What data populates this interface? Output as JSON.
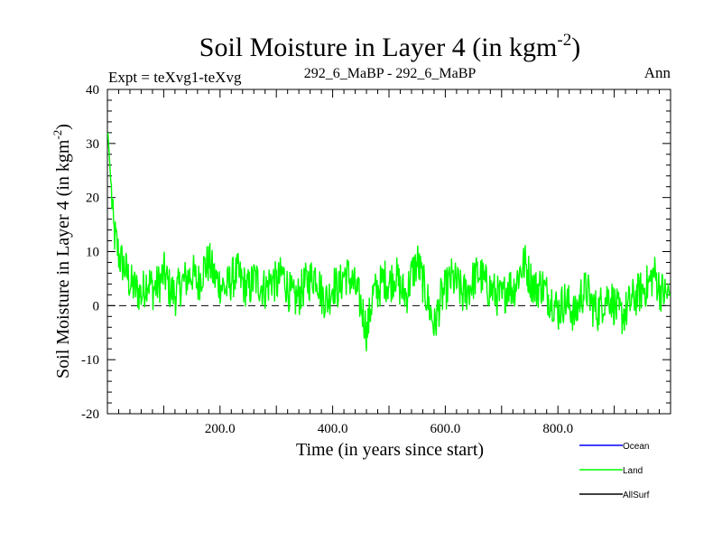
{
  "chart_data": {
    "type": "line",
    "title": "Soil Moisture in Layer 4 (in kgm",
    "title_sup": "-2",
    "title_end": ")",
    "subtitle_left": "Expt = teXvg1-teXvg",
    "subtitle_center": "292_6_MaBP - 292_6_MaBP",
    "subtitle_right": "Ann",
    "xlabel": "Time (in years since start)",
    "ylabel": "Soil Moisture in Layer 4 (in kgm",
    "ylabel_sup": "-2",
    "ylabel_end": ")",
    "xlim": [
      0,
      1000
    ],
    "ylim": [
      -20,
      40
    ],
    "x_ticks": [
      200,
      400,
      600,
      800
    ],
    "x_tick_labels": [
      "200.0",
      "400.0",
      "600.0",
      "800.0"
    ],
    "y_ticks": [
      -20,
      -10,
      0,
      10,
      20,
      30,
      40
    ],
    "y_tick_labels": [
      "-20",
      "-10",
      "0",
      "10",
      "20",
      "30",
      "40"
    ],
    "zero_line": true,
    "series": [
      {
        "name": "Land",
        "color": "#00ff00",
        "x_start": 1,
        "x_step": 10,
        "values": [
          32,
          14,
          9,
          7,
          4,
          3,
          2,
          5,
          3,
          4,
          6,
          3,
          2,
          4,
          5,
          6,
          4,
          7,
          8,
          5,
          4,
          3,
          5,
          6,
          4,
          3,
          5,
          4,
          3,
          5,
          4,
          6,
          3,
          1,
          2,
          4,
          5,
          6,
          2,
          1,
          4,
          3,
          6,
          5,
          3,
          0,
          -5,
          2,
          3,
          5,
          4,
          6,
          3,
          2,
          6,
          8,
          4,
          0,
          -4,
          1,
          3,
          5,
          4,
          2,
          3,
          5,
          6,
          4,
          3,
          2,
          1,
          4,
          3,
          6,
          8,
          5,
          3,
          4,
          2,
          1,
          -1,
          1,
          0,
          -2,
          2,
          3,
          0,
          -1,
          1,
          2,
          0,
          -2,
          -1,
          1,
          2,
          3,
          4,
          6,
          3,
          2
        ],
        "noise_amplitude": 4,
        "note": "series shown as approximate 10-year sampled mean values; rendered with fine noise for appearance"
      },
      {
        "name": "Ocean",
        "color": "#0000ff",
        "values": []
      },
      {
        "name": "AllSurf",
        "color": "#000000",
        "values": []
      }
    ],
    "legend": [
      {
        "label": "Ocean",
        "color": "#0000ff"
      },
      {
        "label": "Land",
        "color": "#00ff00"
      },
      {
        "label": "AllSurf",
        "color": "#000000"
      }
    ],
    "legend_position": "bottom-right"
  }
}
